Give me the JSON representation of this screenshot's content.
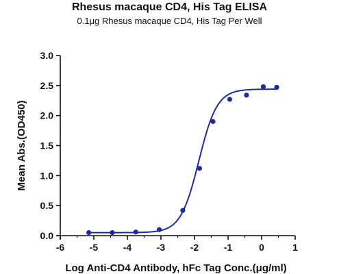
{
  "chart_data": {
    "type": "scatter",
    "title": "Rhesus macaque CD4, His Tag ELISA",
    "subtitle": "0.1μg Rhesus macaque CD4, His Tag Per Well",
    "xlabel": "Log Anti-CD4 Antibody, hFc Tag Conc.(μg/ml)",
    "ylabel": "Mean Abs.(OD450)",
    "xlim": [
      -6,
      1
    ],
    "ylim": [
      0,
      3
    ],
    "xticks": [
      "-6",
      "-5",
      "-4",
      "-3",
      "-2",
      "-1",
      "0",
      "1"
    ],
    "yticks": [
      "0.0",
      "0.5",
      "1.0",
      "1.5",
      "2.0",
      "2.5",
      "3.0"
    ],
    "grid": false,
    "point_color": "#1f2aa0",
    "curve_color": "#1f2aa0",
    "points": [
      {
        "x": -5.15,
        "y": 0.05
      },
      {
        "x": -4.45,
        "y": 0.05
      },
      {
        "x": -3.75,
        "y": 0.06
      },
      {
        "x": -3.05,
        "y": 0.1
      },
      {
        "x": -2.35,
        "y": 0.42
      },
      {
        "x": -1.85,
        "y": 1.12
      },
      {
        "x": -1.45,
        "y": 1.9
      },
      {
        "x": -0.95,
        "y": 2.27
      },
      {
        "x": -0.45,
        "y": 2.34
      },
      {
        "x": 0.05,
        "y": 2.48
      },
      {
        "x": 0.45,
        "y": 2.47
      }
    ],
    "fit": {
      "bottom": 0.05,
      "top": 2.44,
      "logEC50": -1.87,
      "hill": 1.6
    }
  }
}
